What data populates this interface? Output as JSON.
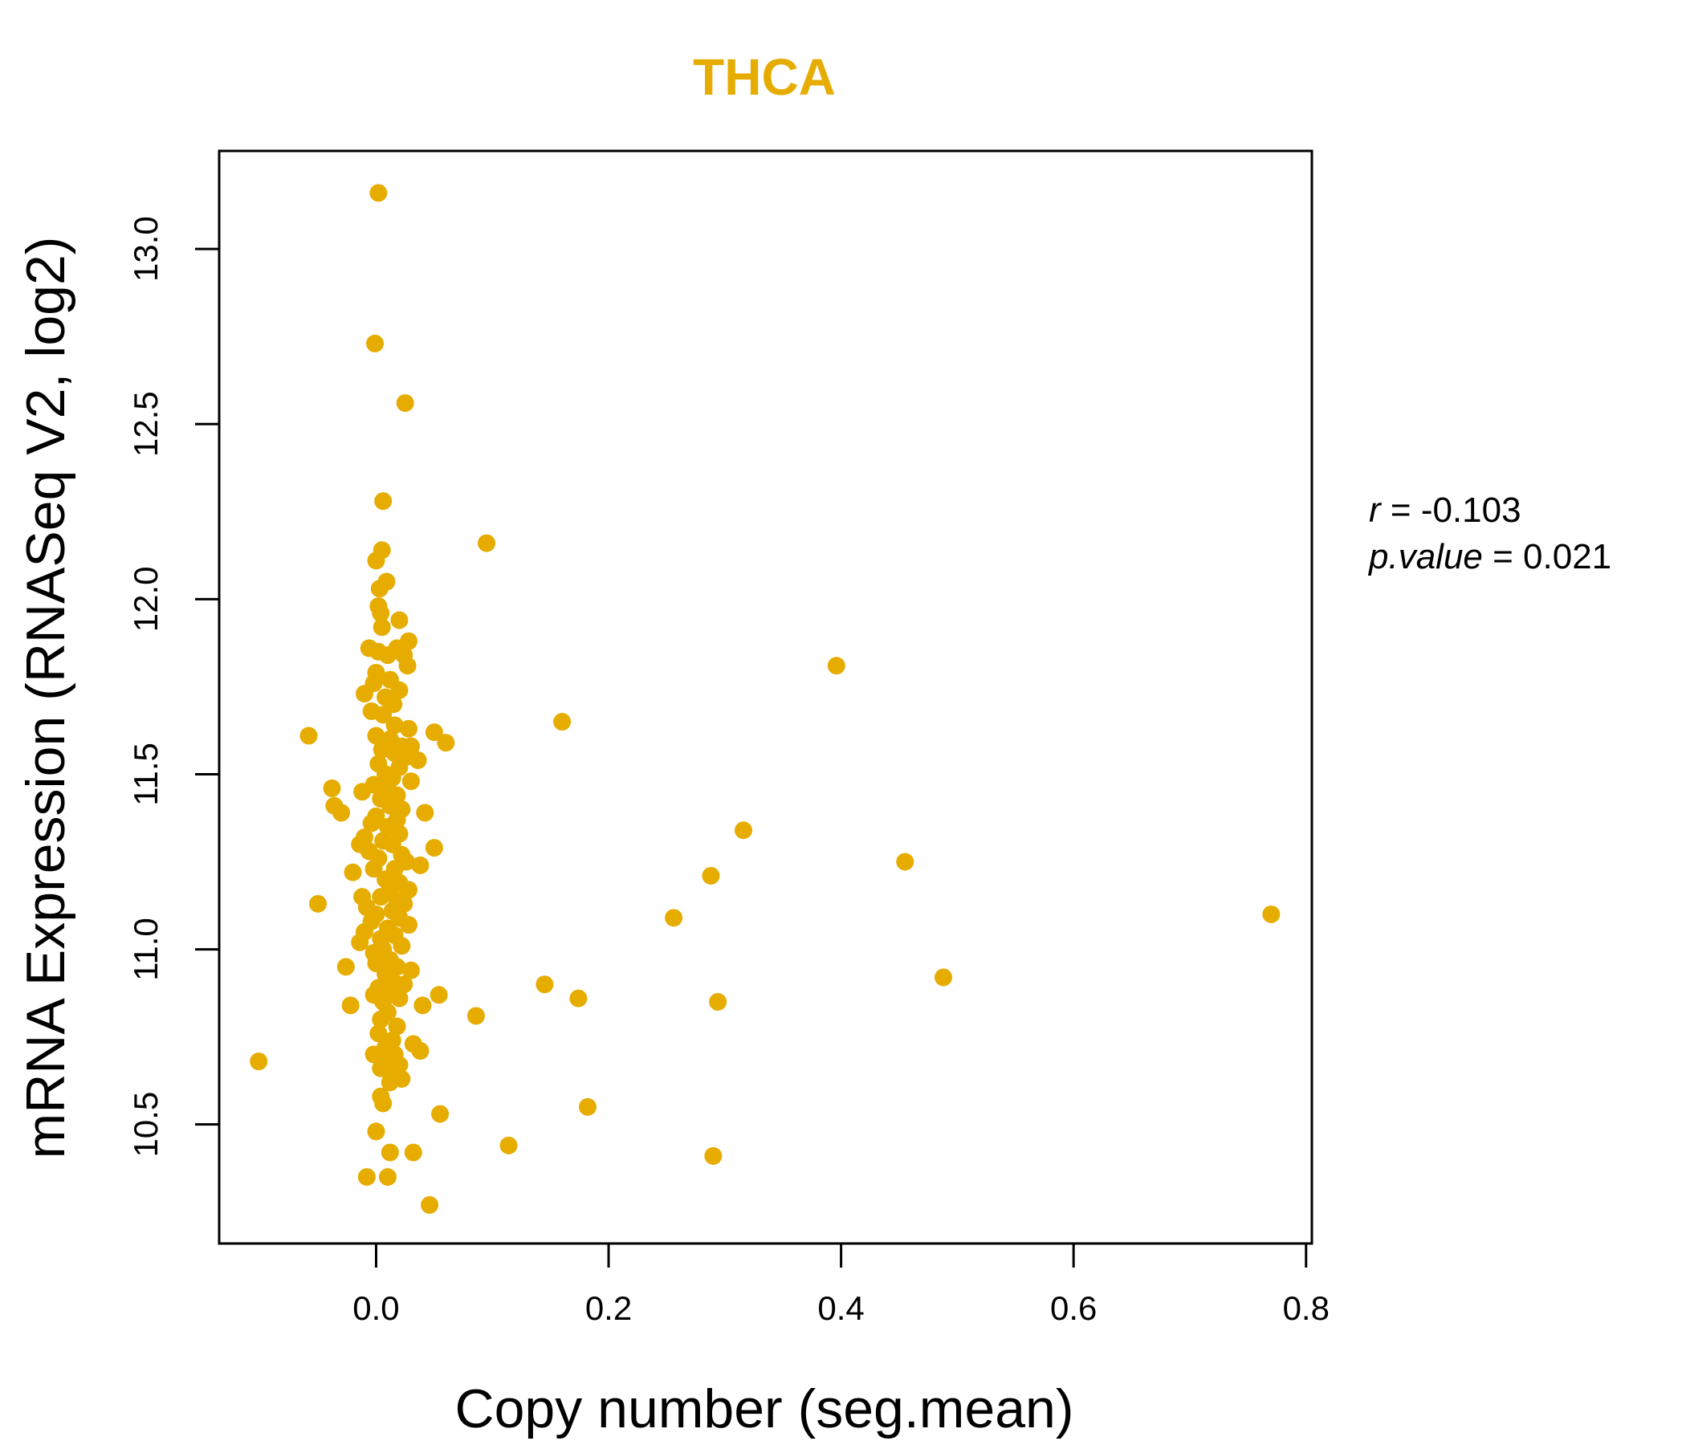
{
  "chart_data": {
    "type": "scatter",
    "title": "THCA",
    "xlabel": "Copy number (seg.mean)",
    "ylabel": "mRNA Expression (RNASeq V2, log2)",
    "xlim": [
      -0.135,
      0.805
    ],
    "ylim": [
      10.16,
      13.28
    ],
    "xticks": [
      "0.0",
      "0.2",
      "0.4",
      "0.6",
      "0.8"
    ],
    "xtick_values": [
      0.0,
      0.2,
      0.4,
      0.6,
      0.8
    ],
    "yticks": [
      "10.5",
      "11.0",
      "11.5",
      "12.0",
      "12.5",
      "13.0"
    ],
    "ytick_values": [
      10.5,
      11.0,
      11.5,
      12.0,
      12.5,
      13.0
    ],
    "grid": false,
    "point_color": "#E6AC00",
    "stats": {
      "r_label": "r",
      "r_value": "-0.103",
      "p_label": "p.value",
      "p_value": "0.021"
    },
    "points": [
      [
        0.002,
        13.16
      ],
      [
        -0.001,
        12.73
      ],
      [
        0.025,
        12.56
      ],
      [
        0.006,
        12.28
      ],
      [
        0.095,
        12.16
      ],
      [
        0.005,
        12.14
      ],
      [
        0.0,
        12.11
      ],
      [
        0.009,
        12.05
      ],
      [
        0.003,
        12.03
      ],
      [
        0.002,
        11.98
      ],
      [
        0.004,
        11.96
      ],
      [
        0.02,
        11.94
      ],
      [
        0.005,
        11.92
      ],
      [
        0.028,
        11.88
      ],
      [
        -0.006,
        11.86
      ],
      [
        0.018,
        11.86
      ],
      [
        0.002,
        11.85
      ],
      [
        0.01,
        11.84
      ],
      [
        0.024,
        11.84
      ],
      [
        0.027,
        11.81
      ],
      [
        0.396,
        11.81
      ],
      [
        0.0,
        11.79
      ],
      [
        0.012,
        11.77
      ],
      [
        -0.002,
        11.76
      ],
      [
        0.02,
        11.74
      ],
      [
        -0.01,
        11.73
      ],
      [
        0.008,
        11.72
      ],
      [
        0.015,
        11.7
      ],
      [
        -0.004,
        11.68
      ],
      [
        0.006,
        11.67
      ],
      [
        0.16,
        11.65
      ],
      [
        0.016,
        11.64
      ],
      [
        0.028,
        11.63
      ],
      [
        0.05,
        11.62
      ],
      [
        -0.058,
        11.61
      ],
      [
        0.0,
        11.61
      ],
      [
        0.012,
        11.6
      ],
      [
        0.06,
        11.59
      ],
      [
        0.022,
        11.58
      ],
      [
        0.03,
        11.58
      ],
      [
        0.005,
        11.57
      ],
      [
        0.016,
        11.56
      ],
      [
        0.026,
        11.55
      ],
      [
        0.036,
        11.54
      ],
      [
        0.002,
        11.53
      ],
      [
        0.02,
        11.52
      ],
      [
        0.008,
        11.5
      ],
      [
        0.014,
        11.49
      ],
      [
        0.03,
        11.48
      ],
      [
        -0.002,
        11.47
      ],
      [
        0.01,
        11.46
      ],
      [
        -0.038,
        11.46
      ],
      [
        -0.012,
        11.45
      ],
      [
        0.018,
        11.44
      ],
      [
        0.004,
        11.43
      ],
      [
        -0.036,
        11.41
      ],
      [
        0.012,
        11.41
      ],
      [
        0.022,
        11.4
      ],
      [
        -0.03,
        11.39
      ],
      [
        0.042,
        11.39
      ],
      [
        0.0,
        11.38
      ],
      [
        0.018,
        11.37
      ],
      [
        -0.004,
        11.36
      ],
      [
        0.01,
        11.35
      ],
      [
        0.316,
        11.34
      ],
      [
        0.02,
        11.33
      ],
      [
        -0.01,
        11.32
      ],
      [
        0.006,
        11.31
      ],
      [
        -0.014,
        11.3
      ],
      [
        0.014,
        11.3
      ],
      [
        0.05,
        11.29
      ],
      [
        -0.006,
        11.28
      ],
      [
        0.022,
        11.27
      ],
      [
        0.002,
        11.26
      ],
      [
        0.026,
        11.25
      ],
      [
        0.455,
        11.25
      ],
      [
        0.038,
        11.24
      ],
      [
        -0.002,
        11.23
      ],
      [
        0.016,
        11.23
      ],
      [
        -0.02,
        11.22
      ],
      [
        0.288,
        11.21
      ],
      [
        0.008,
        11.2
      ],
      [
        0.02,
        11.19
      ],
      [
        0.012,
        11.18
      ],
      [
        0.028,
        11.17
      ],
      [
        -0.012,
        11.15
      ],
      [
        0.004,
        11.15
      ],
      [
        0.018,
        11.14
      ],
      [
        -0.05,
        11.13
      ],
      [
        0.024,
        11.13
      ],
      [
        -0.008,
        11.12
      ],
      [
        0.014,
        11.11
      ],
      [
        0.0,
        11.1
      ],
      [
        0.77,
        11.1
      ],
      [
        0.256,
        11.09
      ],
      [
        0.02,
        11.09
      ],
      [
        -0.004,
        11.08
      ],
      [
        0.028,
        11.07
      ],
      [
        0.01,
        11.06
      ],
      [
        -0.01,
        11.05
      ],
      [
        0.016,
        11.04
      ],
      [
        0.004,
        11.03
      ],
      [
        -0.014,
        11.02
      ],
      [
        0.022,
        11.01
      ],
      [
        0.006,
        11.0
      ],
      [
        -0.002,
        10.99
      ],
      [
        0.012,
        10.97
      ],
      [
        0.0,
        10.96
      ],
      [
        -0.026,
        10.95
      ],
      [
        0.018,
        10.95
      ],
      [
        0.03,
        10.94
      ],
      [
        0.008,
        10.93
      ],
      [
        0.488,
        10.92
      ],
      [
        0.014,
        10.91
      ],
      [
        0.024,
        10.9
      ],
      [
        0.145,
        10.9
      ],
      [
        0.002,
        10.89
      ],
      [
        0.012,
        10.88
      ],
      [
        0.054,
        10.87
      ],
      [
        -0.002,
        10.87
      ],
      [
        0.02,
        10.86
      ],
      [
        0.174,
        10.86
      ],
      [
        0.006,
        10.85
      ],
      [
        0.294,
        10.85
      ],
      [
        0.04,
        10.84
      ],
      [
        -0.022,
        10.84
      ],
      [
        0.01,
        10.82
      ],
      [
        0.004,
        10.8
      ],
      [
        0.086,
        10.81
      ],
      [
        0.018,
        10.78
      ],
      [
        0.002,
        10.76
      ],
      [
        0.014,
        10.74
      ],
      [
        0.032,
        10.73
      ],
      [
        0.008,
        10.72
      ],
      [
        0.038,
        10.71
      ],
      [
        -0.002,
        10.7
      ],
      [
        0.016,
        10.7
      ],
      [
        0.012,
        10.69
      ],
      [
        -0.101,
        10.68
      ],
      [
        0.02,
        10.67
      ],
      [
        0.004,
        10.66
      ],
      [
        0.014,
        10.65
      ],
      [
        0.022,
        10.63
      ],
      [
        0.012,
        10.62
      ],
      [
        0.004,
        10.58
      ],
      [
        0.006,
        10.56
      ],
      [
        0.182,
        10.55
      ],
      [
        0.055,
        10.53
      ],
      [
        0.0,
        10.48
      ],
      [
        0.114,
        10.44
      ],
      [
        0.012,
        10.42
      ],
      [
        0.032,
        10.42
      ],
      [
        0.29,
        10.41
      ],
      [
        -0.008,
        10.35
      ],
      [
        0.01,
        10.35
      ],
      [
        0.046,
        10.27
      ]
    ]
  }
}
